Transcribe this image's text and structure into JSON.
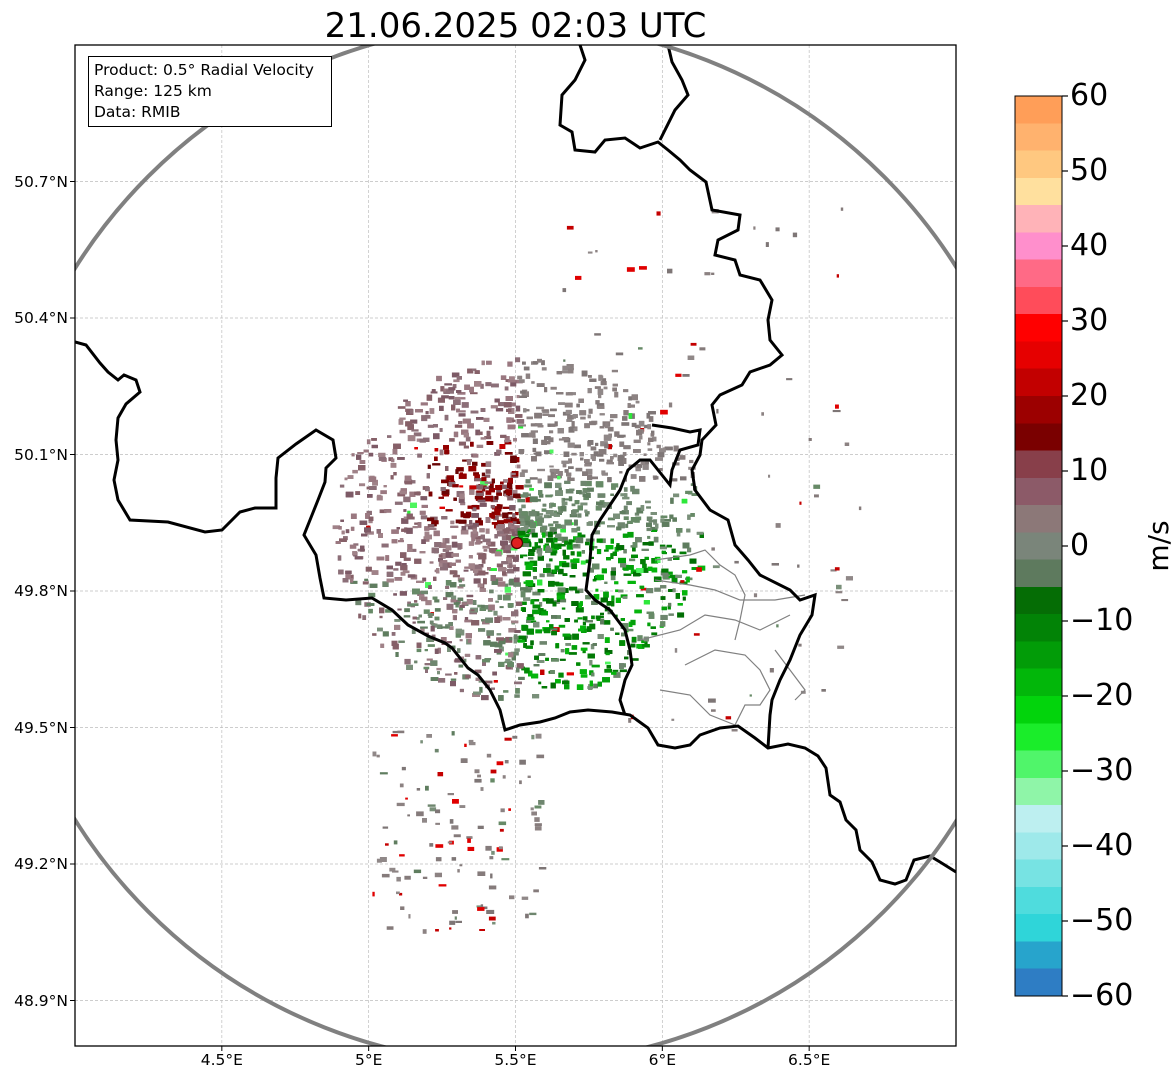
{
  "title": "21.06.2025 02:03 UTC",
  "info": {
    "product": "Product: 0.5° Radial Velocity",
    "range": "Range: 125 km",
    "source": "Data: RMIB"
  },
  "map": {
    "lon_range": [
      4.0,
      7.0
    ],
    "lat_range": [
      48.8,
      51.0
    ],
    "radar_site": {
      "lon": 5.505,
      "lat": 49.915
    },
    "range_ring_km": 125,
    "lat_ticks": [
      {
        "value": 50.7,
        "label": "50.7°N"
      },
      {
        "value": 50.4,
        "label": "50.4°N"
      },
      {
        "value": 50.1,
        "label": "50.1°N"
      },
      {
        "value": 49.8,
        "label": "49.8°N"
      },
      {
        "value": 49.5,
        "label": "49.5°N"
      },
      {
        "value": 49.2,
        "label": "49.2°N"
      },
      {
        "value": 48.9,
        "label": "48.9°N"
      }
    ],
    "lon_ticks": [
      {
        "value": 4.5,
        "label": "4.5°E"
      },
      {
        "value": 5.0,
        "label": "5°E"
      },
      {
        "value": 5.5,
        "label": "5.5°E"
      },
      {
        "value": 6.0,
        "label": "6°E"
      },
      {
        "value": 6.5,
        "label": "6.5°E"
      }
    ],
    "colors": {
      "ring": "#808080",
      "border": "#000000",
      "grid": "#bdbdbd",
      "site": "#e02020"
    }
  },
  "colorbar": {
    "unit": "m/s",
    "min": -60,
    "max": 60,
    "ticks": [
      {
        "value": 60,
        "label": "60"
      },
      {
        "value": 50,
        "label": "50"
      },
      {
        "value": 40,
        "label": "40"
      },
      {
        "value": 30,
        "label": "30"
      },
      {
        "value": 20,
        "label": "20"
      },
      {
        "value": 10,
        "label": "10"
      },
      {
        "value": 0,
        "label": "0"
      },
      {
        "value": -10,
        "label": "−10"
      },
      {
        "value": -20,
        "label": "−20"
      },
      {
        "value": -30,
        "label": "−30"
      },
      {
        "value": -40,
        "label": "−40"
      },
      {
        "value": -50,
        "label": "−50"
      },
      {
        "value": -60,
        "label": "−60"
      }
    ],
    "stops": [
      "#2e7dc4",
      "#27a4cc",
      "#2fd5d9",
      "#4fdcdd",
      "#77e3e3",
      "#9ee9ea",
      "#bdeff0",
      "#8ff5a8",
      "#50f56a",
      "#1aed2a",
      "#02d40c",
      "#02b70a",
      "#029c08",
      "#028306",
      "#056d05",
      "#5e7a5e",
      "#7a857a",
      "#8c7878",
      "#8c5a68",
      "#883f4a",
      "#7a0000",
      "#9c0000",
      "#c20000",
      "#e60000",
      "#ff0000",
      "#ff4c5a",
      "#ff6a86",
      "#ff8fcc",
      "#ffb3b8",
      "#ffe09e",
      "#ffc880",
      "#ffb26e",
      "#ff9e58"
    ]
  }
}
